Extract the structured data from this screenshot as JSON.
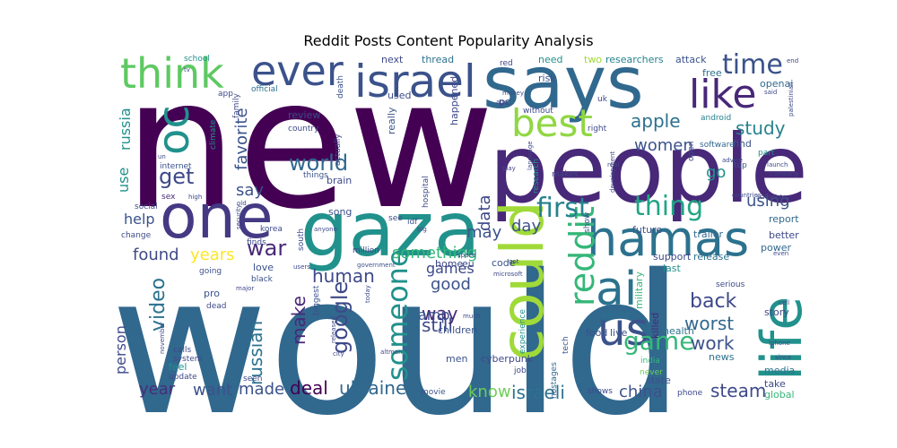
{
  "title": "Reddit Posts Content Popularity Analysis",
  "words": [
    {
      "text": "would",
      "color": "#31688e"
    },
    {
      "text": "new",
      "color": "#440154"
    },
    {
      "text": "people",
      "color": "#482878"
    },
    {
      "text": "gaza",
      "color": "#21918c"
    },
    {
      "text": "says",
      "color": "#31688e"
    },
    {
      "text": "one",
      "color": "#443983"
    },
    {
      "text": "could",
      "color": "#a0da39"
    },
    {
      "text": "life",
      "color": "#21918c"
    },
    {
      "text": "hamas",
      "color": "#2c728e"
    },
    {
      "text": "israel",
      "color": "#3b528b"
    },
    {
      "text": "ever",
      "color": "#3b528b"
    },
    {
      "text": "think",
      "color": "#5ec962"
    },
    {
      "text": "best",
      "color": "#90d743"
    },
    {
      "text": "like",
      "color": "#482878"
    },
    {
      "text": "ai",
      "color": "#2c728e"
    },
    {
      "text": "us",
      "color": "#3b528b"
    },
    {
      "text": "oc",
      "color": "#21918c"
    },
    {
      "text": "reddit",
      "color": "#35b779"
    },
    {
      "text": "someone",
      "color": "#21918c"
    },
    {
      "text": "time",
      "color": "#3b528b"
    },
    {
      "text": "first",
      "color": "#26828e"
    },
    {
      "text": "world",
      "color": "#31688e"
    },
    {
      "text": "thing",
      "color": "#21a585"
    },
    {
      "text": "get",
      "color": "#3e4989"
    },
    {
      "text": "game",
      "color": "#35b779"
    },
    {
      "text": "google",
      "color": "#3e4989"
    },
    {
      "text": "war",
      "color": "#482878"
    },
    {
      "text": "video",
      "color": "#2c728e"
    },
    {
      "text": "year",
      "color": "#472d7b"
    },
    {
      "text": "russian",
      "color": "#2c728e"
    },
    {
      "text": "study",
      "color": "#26828e"
    },
    {
      "text": "apple",
      "color": "#2c728e"
    },
    {
      "text": "women",
      "color": "#3b528b"
    },
    {
      "text": "ukraine",
      "color": "#31688e"
    },
    {
      "text": "israeli",
      "color": "#2c728e"
    },
    {
      "text": "deal",
      "color": "#440154"
    },
    {
      "text": "made",
      "color": "#3b528b"
    },
    {
      "text": "want",
      "color": "#3b528b"
    },
    {
      "text": "know",
      "color": "#6ece58"
    },
    {
      "text": "china",
      "color": "#3b528b"
    },
    {
      "text": "steam",
      "color": "#3e4989"
    },
    {
      "text": "back",
      "color": "#3e4989"
    },
    {
      "text": "worst",
      "color": "#31688e"
    },
    {
      "text": "work",
      "color": "#3b528b"
    },
    {
      "text": "make",
      "color": "#482878"
    },
    {
      "text": "human",
      "color": "#3e4989"
    },
    {
      "text": "still",
      "color": "#3e4989"
    },
    {
      "text": "way",
      "color": "#482878"
    },
    {
      "text": "good",
      "color": "#3b528b"
    },
    {
      "text": "something",
      "color": "#35b779"
    },
    {
      "text": "years",
      "color": "#fde725"
    },
    {
      "text": "found",
      "color": "#3e4989"
    },
    {
      "text": "help",
      "color": "#3b528b"
    },
    {
      "text": "use",
      "color": "#21918c"
    },
    {
      "text": "say",
      "color": "#3b528b"
    },
    {
      "text": "favorite",
      "color": "#3b528b"
    },
    {
      "text": "russia",
      "color": "#21918c"
    },
    {
      "text": "day",
      "color": "#3b528b"
    },
    {
      "text": "data",
      "color": "#3e4989"
    },
    {
      "text": "may",
      "color": "#3b528b"
    },
    {
      "text": "go",
      "color": "#21918c"
    },
    {
      "text": "using",
      "color": "#3b528b"
    },
    {
      "text": "games",
      "color": "#3e4989"
    },
    {
      "text": "amp",
      "color": "#3b528b"
    },
    {
      "text": "person",
      "color": "#3e4989"
    },
    {
      "text": "thread",
      "color": "#2c728e"
    },
    {
      "text": "need",
      "color": "#21918c"
    },
    {
      "text": "two",
      "color": "#a0da39"
    },
    {
      "text": "researchers",
      "color": "#26828e"
    },
    {
      "text": "attack",
      "color": "#3b528b"
    },
    {
      "text": "free",
      "color": "#2c728e"
    },
    {
      "text": "openai",
      "color": "#31688e"
    },
    {
      "text": "android",
      "color": "#26828e"
    },
    {
      "text": "software",
      "color": "#31688e"
    },
    {
      "text": "open",
      "color": "#3e4989"
    },
    {
      "text": "find",
      "color": "#3b528b"
    },
    {
      "text": "part",
      "color": "#21918c"
    },
    {
      "text": "top",
      "color": "#3b528b"
    },
    {
      "text": "trailer",
      "color": "#31688e"
    },
    {
      "text": "report",
      "color": "#31688e"
    },
    {
      "text": "better",
      "color": "#3e4989"
    },
    {
      "text": "power",
      "color": "#31688e"
    },
    {
      "text": "release",
      "color": "#2c728e"
    },
    {
      "text": "support",
      "color": "#3e4989"
    },
    {
      "text": "last",
      "color": "#21918c"
    },
    {
      "text": "killed",
      "color": "#482878"
    },
    {
      "text": "serious",
      "color": "#3e4989"
    },
    {
      "text": "story",
      "color": "#3e4989"
    },
    {
      "text": "health",
      "color": "#2c728e"
    },
    {
      "text": "news",
      "color": "#2c728e"
    },
    {
      "text": "media",
      "color": "#2c728e"
    },
    {
      "text": "take",
      "color": "#3e4989"
    },
    {
      "text": "global",
      "color": "#35b779"
    },
    {
      "text": "state",
      "color": "#3b528b"
    },
    {
      "text": "phone",
      "color": "#3e4989"
    },
    {
      "text": "shows",
      "color": "#3e4989"
    },
    {
      "text": "movie",
      "color": "#3b528b"
    },
    {
      "text": "job",
      "color": "#3e4989"
    },
    {
      "text": "cyberpunk",
      "color": "#3e4989"
    },
    {
      "text": "men",
      "color": "#3b528b"
    },
    {
      "text": "children",
      "color": "#3b528b"
    },
    {
      "text": "hostages",
      "color": "#31688e"
    },
    {
      "text": "experience",
      "color": "#21918c"
    },
    {
      "text": "tech",
      "color": "#3b528b"
    },
    {
      "text": "food",
      "color": "#3b528b"
    },
    {
      "text": "live",
      "color": "#3b528b"
    },
    {
      "text": "military",
      "color": "#35b779"
    },
    {
      "text": "india",
      "color": "#35b779"
    },
    {
      "text": "never",
      "color": "#6ece58"
    },
    {
      "text": "online",
      "color": "#2c728e"
    },
    {
      "text": "future",
      "color": "#3b528b"
    },
    {
      "text": "show",
      "color": "#3b528b"
    },
    {
      "text": "code",
      "color": "#3b528b"
    },
    {
      "text": "home",
      "color": "#3e4989"
    },
    {
      "text": "eu",
      "color": "#3e4989"
    },
    {
      "text": "biggest",
      "color": "#3b528b"
    },
    {
      "text": "south",
      "color": "#3e4989"
    },
    {
      "text": "korea",
      "color": "#3e4989"
    },
    {
      "text": "million",
      "color": "#3e4989"
    },
    {
      "text": "see",
      "color": "#3e4989"
    },
    {
      "text": "idf",
      "color": "#3b528b"
    },
    {
      "text": "hospital",
      "color": "#3e4989"
    },
    {
      "text": "research",
      "color": "#21918c"
    },
    {
      "text": "makes",
      "color": "#3e4989"
    },
    {
      "text": "right",
      "color": "#3e4989"
    },
    {
      "text": "without",
      "color": "#3e4989"
    },
    {
      "text": "uk",
      "color": "#3e4989"
    },
    {
      "text": "risk",
      "color": "#3b528b"
    },
    {
      "text": "pc",
      "color": "#3e4989"
    },
    {
      "text": "used",
      "color": "#3e4989"
    },
    {
      "text": "really",
      "color": "#3b528b"
    },
    {
      "text": "happened",
      "color": "#3e4989"
    },
    {
      "text": "actually",
      "color": "#3e4989"
    },
    {
      "text": "review",
      "color": "#3e4989"
    },
    {
      "text": "country",
      "color": "#3e4989"
    },
    {
      "text": "brain",
      "color": "#3e4989"
    },
    {
      "text": "song",
      "color": "#3b528b"
    },
    {
      "text": "things",
      "color": "#3b528b"
    },
    {
      "text": "climate",
      "color": "#21918c"
    },
    {
      "text": "family",
      "color": "#3e4989"
    },
    {
      "text": "app",
      "color": "#3e4989"
    },
    {
      "text": "school",
      "color": "#21918c"
    },
    {
      "text": "official",
      "color": "#2c728e"
    },
    {
      "text": "death",
      "color": "#3b528b"
    },
    {
      "text": "social",
      "color": "#3e4989"
    },
    {
      "text": "internet",
      "color": "#3b528b"
    },
    {
      "text": "sex",
      "color": "#482878"
    },
    {
      "text": "change",
      "color": "#3e4989"
    },
    {
      "text": "going",
      "color": "#3b528b"
    },
    {
      "text": "love",
      "color": "#3b528b"
    },
    {
      "text": "black",
      "color": "#3b528b"
    },
    {
      "text": "pro",
      "color": "#3b528b"
    },
    {
      "text": "dead",
      "color": "#3e4989"
    },
    {
      "text": "november",
      "color": "#3e4989"
    },
    {
      "text": "calls",
      "color": "#3e4989"
    },
    {
      "text": "system",
      "color": "#3e4989"
    },
    {
      "text": "feel",
      "color": "#21918c"
    },
    {
      "text": "update",
      "color": "#3e4989"
    },
    {
      "text": "seen",
      "color": "#3e4989"
    },
    {
      "text": "finds",
      "color": "#3e4989"
    },
    {
      "text": "government",
      "color": "#3b528b"
    },
    {
      "text": "users",
      "color": "#3e4989"
    },
    {
      "text": "major",
      "color": "#3e4989"
    },
    {
      "text": "city",
      "color": "#3e4989"
    },
    {
      "text": "altman",
      "color": "#3e4989"
    },
    {
      "text": "much",
      "color": "#3e4989"
    },
    {
      "text": "today",
      "color": "#3e4989"
    },
    {
      "text": "released",
      "color": "#3e4989"
    },
    {
      "text": "microsoft",
      "color": "#3e4989"
    },
    {
      "text": "got",
      "color": "#3e4989"
    },
    {
      "text": "big",
      "color": "#3e4989"
    },
    {
      "text": "play",
      "color": "#3e4989"
    },
    {
      "text": "language",
      "color": "#3e4989"
    },
    {
      "text": "real",
      "color": "#3e4989"
    },
    {
      "text": "development",
      "color": "#3e4989"
    },
    {
      "text": "advice",
      "color": "#3e4989"
    },
    {
      "text": "launch",
      "color": "#3e4989"
    },
    {
      "text": "countries",
      "color": "#3e4989"
    },
    {
      "text": "company",
      "color": "#3e4989"
    },
    {
      "text": "scientists",
      "color": "#3e4989"
    },
    {
      "text": "even",
      "color": "#3e4989"
    },
    {
      "text": "iphone",
      "color": "#3e4989"
    },
    {
      "text": "since",
      "color": "#3e4989"
    },
    {
      "text": "palestinian",
      "color": "#3e4989"
    },
    {
      "text": "said",
      "color": "#3e4989"
    },
    {
      "text": "end",
      "color": "#3e4989"
    },
    {
      "text": "next",
      "color": "#3e4989"
    },
    {
      "text": "red",
      "color": "#3e4989"
    },
    {
      "text": "age",
      "color": "#3e4989"
    },
    {
      "text": "money",
      "color": "#3e4989"
    },
    {
      "text": "high",
      "color": "#3e4989"
    },
    {
      "text": "security",
      "color": "#3e4989"
    },
    {
      "text": "anyone",
      "color": "#3e4989"
    },
    {
      "text": "tv",
      "color": "#3e4989"
    },
    {
      "text": "un",
      "color": "#3e4989"
    },
    {
      "text": "old",
      "color": "#3e4989"
    },
    {
      "text": "space",
      "color": "#3e4989"
    },
    {
      "text": "cell",
      "color": "#3e4989"
    }
  ]
}
